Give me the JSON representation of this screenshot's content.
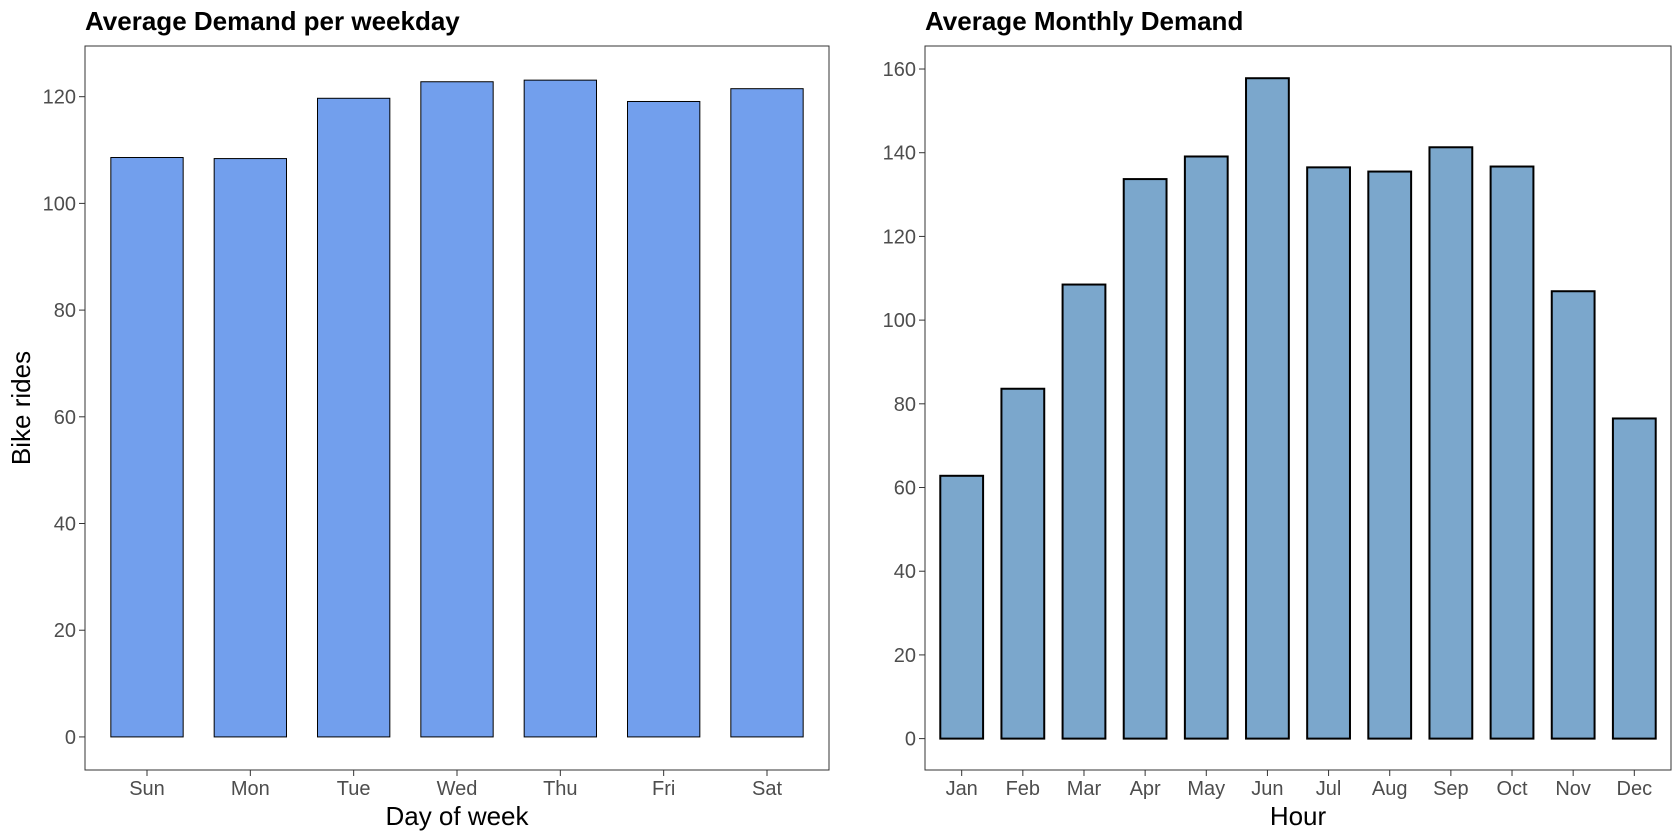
{
  "chart_data": [
    {
      "type": "bar",
      "title": "Average Demand per weekday",
      "xlabel": "Day of week",
      "ylabel": "Bike rides",
      "categories": [
        "Sun",
        "Mon",
        "Tue",
        "Wed",
        "Thu",
        "Fri",
        "Sat"
      ],
      "values": [
        108.6,
        108.4,
        119.7,
        122.8,
        123.1,
        119.1,
        121.5
      ],
      "ylim": [
        -6.2,
        129.5
      ],
      "yticks": [
        "0",
        "20",
        "40",
        "60",
        "80",
        "100",
        "120"
      ],
      "bar_color": "#729fed",
      "grid": false
    },
    {
      "type": "bar",
      "title": "Average Monthly Demand",
      "xlabel": "Hour",
      "ylabel": "",
      "categories": [
        "Jan",
        "Feb",
        "Mar",
        "Apr",
        "May",
        "Jun",
        "Jul",
        "Aug",
        "Sep",
        "Oct",
        "Nov",
        "Dec"
      ],
      "values": [
        62.8,
        83.6,
        108.5,
        133.7,
        139.1,
        157.8,
        136.5,
        135.5,
        141.3,
        136.7,
        106.9,
        76.5
      ],
      "ylim": [
        -7.5,
        165.5
      ],
      "yticks": [
        "0",
        "20",
        "40",
        "60",
        "80",
        "100",
        "120",
        "140",
        "160"
      ],
      "bar_color": "#7ba7cc",
      "grid": false
    }
  ]
}
